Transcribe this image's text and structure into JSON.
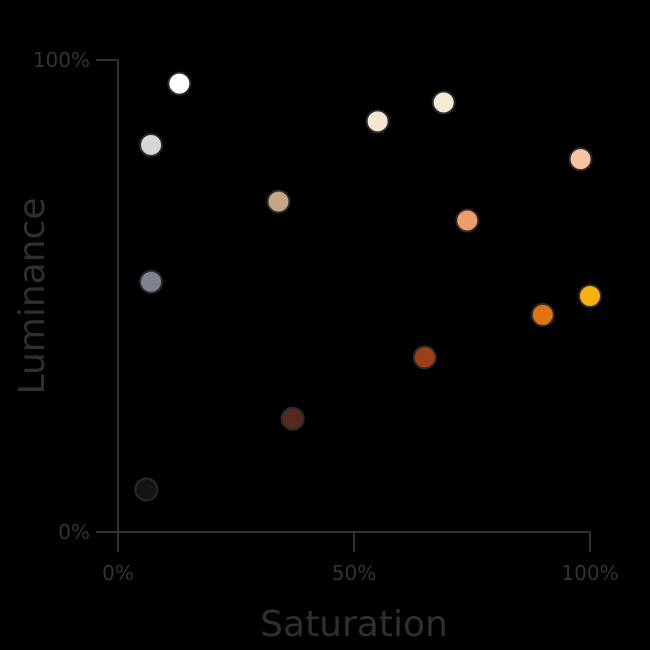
{
  "chart_data": {
    "type": "scatter",
    "xlabel": "Saturation",
    "ylabel": "Luminance",
    "xlim": [
      0,
      100
    ],
    "ylim": [
      0,
      100
    ],
    "x_ticks": [
      "0%",
      "50%",
      "100%"
    ],
    "y_ticks": [
      "0%",
      "100%"
    ],
    "grid": false,
    "points": [
      {
        "x": 13,
        "y": 95,
        "color": "#ffffff"
      },
      {
        "x": 7,
        "y": 82,
        "color": "#d6d6d6"
      },
      {
        "x": 7,
        "y": 53,
        "color": "#7d8190"
      },
      {
        "x": 6,
        "y": 9,
        "color": "#141414"
      },
      {
        "x": 34,
        "y": 70,
        "color": "#c3a688"
      },
      {
        "x": 37,
        "y": 24,
        "color": "#56291c"
      },
      {
        "x": 55,
        "y": 87,
        "color": "#f2e5d3"
      },
      {
        "x": 69,
        "y": 91,
        "color": "#f6ead7"
      },
      {
        "x": 74,
        "y": 66,
        "color": "#ee9c6b"
      },
      {
        "x": 65,
        "y": 37,
        "color": "#9c3f1a"
      },
      {
        "x": 98,
        "y": 79,
        "color": "#fac3a0"
      },
      {
        "x": 90,
        "y": 46,
        "color": "#e07412"
      },
      {
        "x": 100,
        "y": 50,
        "color": "#f8b00e"
      }
    ]
  }
}
